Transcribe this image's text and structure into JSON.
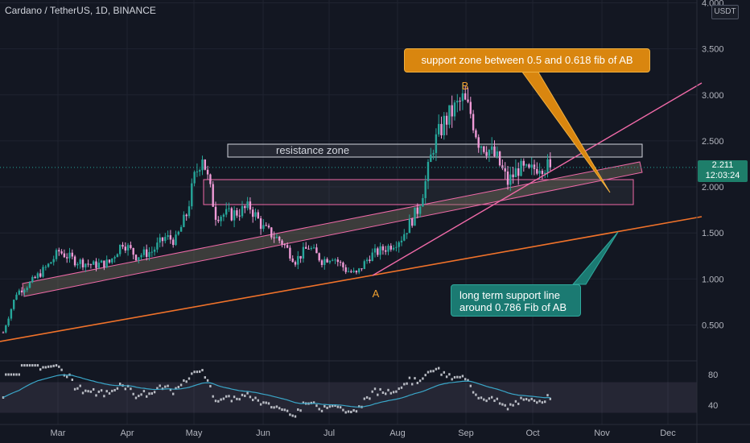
{
  "header": {
    "symbol": "Cardano / TetherUS, 1D, BINANCE"
  },
  "y_axis": {
    "unit": "USDT"
  },
  "price_tag": {
    "price": "2.211",
    "countdown": "12:03:24"
  },
  "annotations": {
    "resistance": "resistance zone",
    "support_fib": "support zone between 0.5 and 0.618 fib of AB",
    "long_term_1": "long term support line",
    "long_term_2": "around 0.786 Fib of AB",
    "point_a": "A",
    "point_b": "B"
  },
  "colors": {
    "background": "#131722",
    "up": "#26a69a",
    "down": "#ef9ad6",
    "channel": "#f06aa8",
    "trend_orange": "#f0722a",
    "oscillator": "#b9bcc4",
    "signal": "#3aa6c8",
    "callout_orange": "#d9860f",
    "callout_teal": "#1b7a72"
  },
  "chart_data": {
    "type": "candlestick",
    "title": "Cardano / TetherUS, 1D, BINANCE",
    "x_months": [
      "Mar",
      "Apr",
      "May",
      "Jun",
      "Jul",
      "Aug",
      "Sep",
      "Oct",
      "Nov",
      "Dec"
    ],
    "y_ticks": [
      "0.500",
      "1.000",
      "1.500",
      "2.000",
      "2.500",
      "3.000",
      "3.500",
      "4.000"
    ],
    "ylim": [
      0.12,
      4.0
    ],
    "last_price": 2.211,
    "price_anchors": [
      {
        "day": 0,
        "price": 0.42
      },
      {
        "day": 5,
        "price": 0.85
      },
      {
        "day": 10,
        "price": 0.95
      },
      {
        "day": 17,
        "price": 1.15
      },
      {
        "day": 21,
        "price": 1.3
      },
      {
        "day": 27,
        "price": 1.2
      },
      {
        "day": 34,
        "price": 1.15
      },
      {
        "day": 40,
        "price": 1.18
      },
      {
        "day": 45,
        "price": 1.4
      },
      {
        "day": 50,
        "price": 1.25
      },
      {
        "day": 56,
        "price": 1.3
      },
      {
        "day": 61,
        "price": 1.45
      },
      {
        "day": 65,
        "price": 1.42
      },
      {
        "day": 69,
        "price": 1.7
      },
      {
        "day": 72,
        "price": 2.1
      },
      {
        "day": 75,
        "price": 2.35
      },
      {
        "day": 80,
        "price": 1.7
      },
      {
        "day": 86,
        "price": 1.7
      },
      {
        "day": 93,
        "price": 1.78
      },
      {
        "day": 98,
        "price": 1.55
      },
      {
        "day": 105,
        "price": 1.4
      },
      {
        "day": 110,
        "price": 1.2
      },
      {
        "day": 115,
        "price": 1.35
      },
      {
        "day": 120,
        "price": 1.2
      },
      {
        "day": 124,
        "price": 1.25
      },
      {
        "day": 129,
        "price": 1.1
      },
      {
        "day": 133,
        "price": 1.05
      },
      {
        "day": 138,
        "price": 1.25
      },
      {
        "day": 145,
        "price": 1.35
      },
      {
        "day": 150,
        "price": 1.45
      },
      {
        "day": 156,
        "price": 1.75
      },
      {
        "day": 159,
        "price": 2.05
      },
      {
        "day": 162,
        "price": 2.45
      },
      {
        "day": 166,
        "price": 2.7
      },
      {
        "day": 170,
        "price": 2.85
      },
      {
        "day": 173,
        "price": 2.95
      },
      {
        "day": 176,
        "price": 2.8
      },
      {
        "day": 179,
        "price": 2.5
      },
      {
        "day": 183,
        "price": 2.4
      },
      {
        "day": 186,
        "price": 2.3
      },
      {
        "day": 190,
        "price": 2.05
      },
      {
        "day": 194,
        "price": 2.2
      },
      {
        "day": 198,
        "price": 2.15
      },
      {
        "day": 202,
        "price": 2.25
      },
      {
        "day": 206,
        "price": 2.21
      }
    ],
    "oscillator": {
      "ylim": [
        20,
        100
      ],
      "ticks": [
        "80",
        "40"
      ],
      "band": [
        30,
        70
      ]
    },
    "callouts": [
      "support zone between 0.5 and 0.618 fib of AB",
      "long term support line around 0.786 Fib of AB"
    ]
  }
}
